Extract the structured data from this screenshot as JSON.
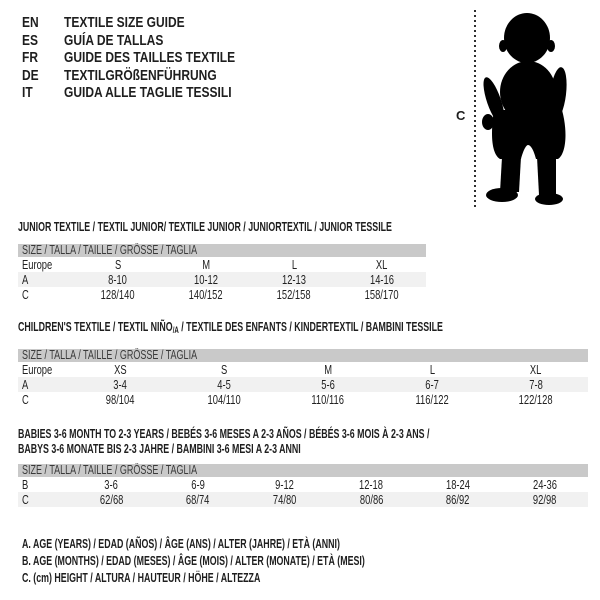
{
  "languages": [
    {
      "code": "EN",
      "label": "TEXTILE SIZE GUIDE"
    },
    {
      "code": "ES",
      "label": "GUÍA DE TALLAS"
    },
    {
      "code": "FR",
      "label": "GUIDE DES TAILLES TEXTILE"
    },
    {
      "code": "DE",
      "label": "TEXTILGRÖßENFÜHRUNG"
    },
    {
      "code": "IT",
      "label": "GUIDA ALLE TAGLIE TESSILI"
    }
  ],
  "figure": {
    "height_label": "C",
    "image": "baby-toddler-silhouette"
  },
  "tables": [
    {
      "title": "JUNIOR TEXTILE / TEXTIL JUNIOR/ TEXTILE JUNIOR / JUNIORTEXTIL / JUNIOR TESSILE",
      "size_header": "SIZE / TALLA / TAILLE / GRÖSSE / TAGLIA",
      "rows": [
        [
          "Europe",
          "S",
          "M",
          "L",
          "XL"
        ],
        [
          "A",
          "8-10",
          "10-12",
          "12-13",
          "14-16"
        ],
        [
          "C",
          "128/140",
          "140/152",
          "152/158",
          "158/170"
        ]
      ]
    },
    {
      "title_parts": {
        "main": "CHILDREN'S TEXTILE / TEXTIL NIÑO",
        "sub": "/A",
        "rest": " / TEXTILE DES ENFANTS / KINDERTEXTIL / BAMBINI TESSILE"
      },
      "size_header": "SIZE / TALLA / TAILLE / GRÖSSE / TAGLIA",
      "rows": [
        [
          "Europe",
          "XS",
          "S",
          "M",
          "L",
          "XL"
        ],
        [
          "A",
          "3-4",
          "4-5",
          "5-6",
          "6-7",
          "7-8"
        ],
        [
          "C",
          "98/104",
          "104/110",
          "110/116",
          "116/122",
          "122/128"
        ]
      ]
    },
    {
      "title_line1": "BABIES 3-6 MONTH TO 2-3 YEARS / BEBÉS 3-6 MESES A 2-3 AÑOS / BÉBÉS 3-6 MOIS À 2-3 ANS /",
      "title_line2": "BABYS 3-6 MONATE BIS 2-3 JAHRE / BAMBINI 3-6 MESI A 2-3 ANNI",
      "size_header": "SIZE / TALLA / TAILLE / GRÖSSE / TAGLIA",
      "rows": [
        [
          "B",
          "3-6",
          "6-9",
          "9-12",
          "12-18",
          "18-24",
          "24-36"
        ],
        [
          "C",
          "62/68",
          "68/74",
          "74/80",
          "80/86",
          "86/92",
          "92/98"
        ]
      ]
    }
  ],
  "legend": [
    "A. AGE (YEARS) / EDAD (AÑOS) / ÂGE (ANS) / ALTER (JAHRE) / ETÀ (ANNI)",
    "B. AGE (MONTHS) / EDAD (MESES) / ÂGE (MOIS) / ALTER (MONATE) / ETÀ (MESI)",
    "C. (cm) HEIGHT / ALTURA / HAUTEUR / HÖHE / ALTEZZA"
  ],
  "colors": {
    "header_bar": "#c9c9c9",
    "row_alt": "#f1f1f1",
    "text": "#1e1e1e",
    "silhouette": "#000000"
  }
}
